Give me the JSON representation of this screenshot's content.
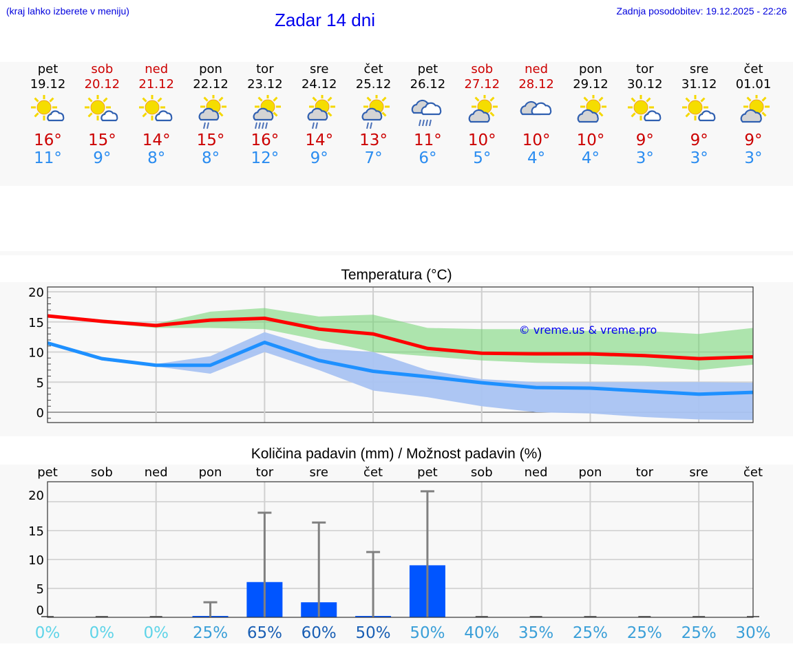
{
  "header": {
    "region_hint": "(kraj lahko izberete v meniju)",
    "title": "Zadar 14 dni",
    "last_update": "Zadnja posodobitev: 19.12.2025 - 22:26"
  },
  "days": [
    {
      "name": "pet",
      "date": "19.12",
      "weekend": false,
      "icon": "sun-small-cloud-icon",
      "tmax": "16°",
      "tmin": "11°"
    },
    {
      "name": "sob",
      "date": "20.12",
      "weekend": true,
      "icon": "sun-small-cloud-icon",
      "tmax": "15°",
      "tmin": "9°"
    },
    {
      "name": "ned",
      "date": "21.12",
      "weekend": true,
      "icon": "sun-small-cloud-icon",
      "tmax": "14°",
      "tmin": "8°"
    },
    {
      "name": "pon",
      "date": "22.12",
      "weekend": false,
      "icon": "sun-cloud-light-rain-icon",
      "tmax": "15°",
      "tmin": "8°"
    },
    {
      "name": "tor",
      "date": "23.12",
      "weekend": false,
      "icon": "sun-cloud-rain-icon",
      "tmax": "16°",
      "tmin": "12°"
    },
    {
      "name": "sre",
      "date": "24.12",
      "weekend": false,
      "icon": "sun-cloud-light-rain-icon",
      "tmax": "14°",
      "tmin": "9°"
    },
    {
      "name": "čet",
      "date": "25.12",
      "weekend": false,
      "icon": "sun-cloud-light-rain-icon",
      "tmax": "13°",
      "tmin": "7°"
    },
    {
      "name": "pet",
      "date": "26.12",
      "weekend": false,
      "icon": "cloudy-rain-icon",
      "tmax": "11°",
      "tmin": "6°"
    },
    {
      "name": "sob",
      "date": "27.12",
      "weekend": true,
      "icon": "partly-cloudy-icon",
      "tmax": "10°",
      "tmin": "5°"
    },
    {
      "name": "ned",
      "date": "28.12",
      "weekend": true,
      "icon": "cloudy-icon",
      "tmax": "10°",
      "tmin": "4°"
    },
    {
      "name": "pon",
      "date": "29.12",
      "weekend": false,
      "icon": "partly-cloudy-icon",
      "tmax": "10°",
      "tmin": "4°"
    },
    {
      "name": "tor",
      "date": "30.12",
      "weekend": false,
      "icon": "sun-small-cloud-icon",
      "tmax": "9°",
      "tmin": "3°"
    },
    {
      "name": "sre",
      "date": "31.12",
      "weekend": false,
      "icon": "sun-small-cloud-icon",
      "tmax": "9°",
      "tmin": "3°"
    },
    {
      "name": "čet",
      "date": "01.01",
      "weekend": false,
      "icon": "partly-cloudy-icon",
      "tmax": "9°",
      "tmin": "3°"
    }
  ],
  "colors": {
    "weekend": "#cc0000",
    "tmax": "#cc0000",
    "tmin": "#2a8cf0",
    "max_line": "#ff0000",
    "min_line": "#1e90ff",
    "max_band": "#a8e6a8",
    "min_band": "#a9c3f2",
    "bar": "#0055ff",
    "whisker": "#808080"
  },
  "watermark": "© vreme.us & vreme.pro",
  "chart_data": [
    {
      "type": "line",
      "title": "Temperatura (°C)",
      "xlabel": "",
      "ylabel": "",
      "ylim": [
        -2,
        21
      ],
      "yticks": [
        0,
        5,
        10,
        15,
        20
      ],
      "grid": true,
      "x": [
        "19.12",
        "20.12",
        "21.12",
        "22.12",
        "23.12",
        "24.12",
        "25.12",
        "26.12",
        "27.12",
        "28.12",
        "29.12",
        "30.12",
        "31.12",
        "01.01"
      ],
      "series": [
        {
          "name": "max",
          "values": [
            16.0,
            15.1,
            14.4,
            15.3,
            15.6,
            13.8,
            13.0,
            10.6,
            9.8,
            9.7,
            9.7,
            9.4,
            8.9,
            9.2
          ]
        },
        {
          "name": "max_band_upper",
          "values": [
            16.2,
            15.4,
            14.7,
            16.7,
            17.3,
            15.9,
            16.2,
            14.0,
            13.8,
            13.8,
            13.5,
            13.5,
            13.0,
            14.0
          ]
        },
        {
          "name": "max_band_lower",
          "values": [
            16.0,
            14.8,
            14.0,
            14.0,
            13.8,
            12.0,
            10.0,
            9.3,
            8.6,
            8.2,
            8.0,
            7.7,
            7.0,
            7.9
          ]
        },
        {
          "name": "min",
          "values": [
            11.5,
            8.9,
            7.8,
            7.8,
            11.6,
            8.6,
            6.8,
            5.9,
            4.9,
            4.1,
            4.0,
            3.5,
            3.0,
            3.3
          ]
        },
        {
          "name": "min_band_upper",
          "values": [
            11.7,
            9.2,
            8.0,
            9.3,
            13.3,
            10.6,
            10.0,
            7.0,
            5.5,
            5.0,
            5.0,
            5.0,
            5.0,
            4.9
          ]
        },
        {
          "name": "min_band_lower",
          "values": [
            11.3,
            8.6,
            7.6,
            6.4,
            10.0,
            7.0,
            3.6,
            2.5,
            1.0,
            0.0,
            -0.2,
            -0.8,
            -1.2,
            -1.3
          ]
        }
      ]
    },
    {
      "type": "bar",
      "title": "Količina padavin (mm) / Možnost padavin (%)",
      "xlabel": "",
      "ylabel": "",
      "ylim": [
        0,
        21.5
      ],
      "yticks": [
        0,
        5,
        10,
        15,
        20
      ],
      "grid": true,
      "categories": [
        "pet",
        "sob",
        "ned",
        "pon",
        "tor",
        "sre",
        "čet",
        "pet",
        "sob",
        "ned",
        "pon",
        "tor",
        "sre",
        "čet"
      ],
      "series": [
        {
          "name": "precip_mm",
          "values": [
            0,
            0,
            0,
            0.2,
            6.1,
            2.6,
            0.1,
            9.0,
            0,
            0,
            0,
            0,
            0,
            0
          ]
        },
        {
          "name": "precip_max_mm",
          "values": [
            0,
            0,
            0,
            2.6,
            18.1,
            16.4,
            11.3,
            21.8,
            0,
            0,
            0,
            0,
            0,
            0
          ]
        }
      ],
      "probability": [
        "0%",
        "0%",
        "0%",
        "25%",
        "65%",
        "60%",
        "50%",
        "50%",
        "40%",
        "35%",
        "25%",
        "25%",
        "25%",
        "30%"
      ],
      "probability_colors": [
        "#5fd4e8",
        "#5fd4e8",
        "#5fd4e8",
        "#3a9fd8",
        "#1a5fb4",
        "#1a5fb4",
        "#1a5fb4",
        "#3a9fd8",
        "#3a9fd8",
        "#3a9fd8",
        "#3a9fd8",
        "#3a9fd8",
        "#3a9fd8",
        "#3a9fd8"
      ]
    }
  ]
}
